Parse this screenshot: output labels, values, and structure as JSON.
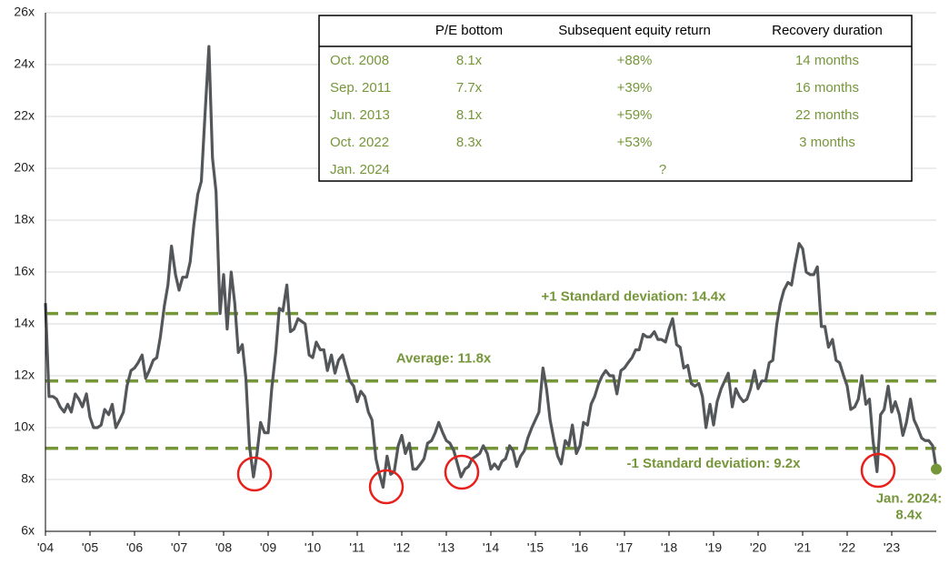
{
  "chart_data": {
    "type": "line",
    "xlim": [
      2004,
      2024
    ],
    "xticks": [
      {
        "value": 2004,
        "label": "'04"
      },
      {
        "value": 2005,
        "label": "'05"
      },
      {
        "value": 2006,
        "label": "'06"
      },
      {
        "value": 2007,
        "label": "'07"
      },
      {
        "value": 2008,
        "label": "'08"
      },
      {
        "value": 2009,
        "label": "'09"
      },
      {
        "value": 2010,
        "label": "'10"
      },
      {
        "value": 2011,
        "label": "'11"
      },
      {
        "value": 2012,
        "label": "'12"
      },
      {
        "value": 2013,
        "label": "'13"
      },
      {
        "value": 2014,
        "label": "'14"
      },
      {
        "value": 2015,
        "label": "'15"
      },
      {
        "value": 2016,
        "label": "'16"
      },
      {
        "value": 2017,
        "label": "'17"
      },
      {
        "value": 2018,
        "label": "'18"
      },
      {
        "value": 2019,
        "label": "'19"
      },
      {
        "value": 2020,
        "label": "'20"
      },
      {
        "value": 2021,
        "label": "'21"
      },
      {
        "value": 2022,
        "label": "'22"
      },
      {
        "value": 2023,
        "label": "'23"
      }
    ],
    "ylim": [
      6,
      26
    ],
    "yticks": [
      {
        "value": 6,
        "label": "6x"
      },
      {
        "value": 8,
        "label": "8x"
      },
      {
        "value": 10,
        "label": "10x"
      },
      {
        "value": 12,
        "label": "12x"
      },
      {
        "value": 14,
        "label": "14x"
      },
      {
        "value": 16,
        "label": "16x"
      },
      {
        "value": 18,
        "label": "18x"
      },
      {
        "value": 20,
        "label": "20x"
      },
      {
        "value": 22,
        "label": "22x"
      },
      {
        "value": 24,
        "label": "24x"
      },
      {
        "value": 26,
        "label": "26x"
      }
    ],
    "grid": true,
    "x": [
      2004.0,
      2004.08,
      2004.17,
      2004.25,
      2004.33,
      2004.42,
      2004.5,
      2004.58,
      2004.67,
      2004.75,
      2004.83,
      2004.92,
      2005.0,
      2005.08,
      2005.17,
      2005.25,
      2005.33,
      2005.42,
      2005.5,
      2005.58,
      2005.67,
      2005.75,
      2005.83,
      2005.92,
      2006.0,
      2006.08,
      2006.17,
      2006.25,
      2006.33,
      2006.42,
      2006.5,
      2006.58,
      2006.67,
      2006.75,
      2006.83,
      2006.92,
      2007.0,
      2007.08,
      2007.17,
      2007.25,
      2007.33,
      2007.42,
      2007.5,
      2007.58,
      2007.67,
      2007.75,
      2007.83,
      2007.92,
      2008.0,
      2008.08,
      2008.17,
      2008.25,
      2008.33,
      2008.42,
      2008.5,
      2008.58,
      2008.67,
      2008.75,
      2008.83,
      2008.92,
      2009.0,
      2009.08,
      2009.17,
      2009.25,
      2009.33,
      2009.42,
      2009.5,
      2009.58,
      2009.67,
      2009.75,
      2009.83,
      2009.92,
      2010.0,
      2010.08,
      2010.17,
      2010.25,
      2010.33,
      2010.42,
      2010.5,
      2010.58,
      2010.67,
      2010.75,
      2010.83,
      2010.92,
      2011.0,
      2011.08,
      2011.17,
      2011.25,
      2011.33,
      2011.42,
      2011.5,
      2011.58,
      2011.67,
      2011.75,
      2011.83,
      2011.92,
      2012.0,
      2012.08,
      2012.17,
      2012.25,
      2012.33,
      2012.42,
      2012.5,
      2012.58,
      2012.67,
      2012.75,
      2012.83,
      2012.92,
      2013.0,
      2013.08,
      2013.17,
      2013.25,
      2013.33,
      2013.42,
      2013.5,
      2013.58,
      2013.67,
      2013.75,
      2013.83,
      2013.92,
      2014.0,
      2014.08,
      2014.17,
      2014.25,
      2014.33,
      2014.42,
      2014.5,
      2014.58,
      2014.67,
      2014.75,
      2014.83,
      2014.92,
      2015.0,
      2015.08,
      2015.17,
      2015.25,
      2015.33,
      2015.42,
      2015.5,
      2015.58,
      2015.67,
      2015.75,
      2015.83,
      2015.92,
      2016.0,
      2016.08,
      2016.17,
      2016.25,
      2016.33,
      2016.42,
      2016.5,
      2016.58,
      2016.67,
      2016.75,
      2016.83,
      2016.92,
      2017.0,
      2017.08,
      2017.17,
      2017.25,
      2017.33,
      2017.42,
      2017.5,
      2017.58,
      2017.67,
      2017.75,
      2017.83,
      2017.92,
      2018.0,
      2018.08,
      2018.17,
      2018.25,
      2018.33,
      2018.42,
      2018.5,
      2018.58,
      2018.67,
      2018.75,
      2018.83,
      2018.92,
      2019.0,
      2019.08,
      2019.17,
      2019.25,
      2019.33,
      2019.42,
      2019.5,
      2019.58,
      2019.67,
      2019.75,
      2019.83,
      2019.92,
      2020.0,
      2020.08,
      2020.17,
      2020.25,
      2020.33,
      2020.42,
      2020.5,
      2020.58,
      2020.67,
      2020.75,
      2020.83,
      2020.92,
      2021.0,
      2021.08,
      2021.17,
      2021.25,
      2021.33,
      2021.42,
      2021.5,
      2021.58,
      2021.67,
      2021.75,
      2021.83,
      2021.92,
      2022.0,
      2022.08,
      2022.17,
      2022.25,
      2022.33,
      2022.42,
      2022.5,
      2022.58,
      2022.67,
      2022.75,
      2022.83,
      2022.92,
      2023.0,
      2023.08,
      2023.17,
      2023.25,
      2023.33,
      2023.42,
      2023.5,
      2023.58,
      2023.67,
      2023.75,
      2023.83,
      2023.92,
      2024.0
    ],
    "series": [
      {
        "color": "#53575a",
        "values": [
          14.8,
          11.2,
          11.2,
          11.1,
          10.8,
          10.6,
          10.9,
          10.6,
          11.3,
          11.1,
          10.8,
          11.3,
          10.4,
          10.0,
          10.0,
          10.1,
          10.7,
          10.5,
          10.9,
          10.0,
          10.3,
          10.6,
          11.6,
          12.2,
          12.3,
          12.5,
          12.8,
          11.9,
          12.2,
          12.6,
          12.7,
          13.5,
          14.7,
          15.5,
          17.0,
          15.9,
          15.3,
          15.8,
          15.8,
          16.4,
          17.8,
          19.0,
          19.5,
          22.0,
          24.7,
          20.4,
          19.1,
          14.4,
          15.9,
          13.8,
          16.0,
          14.8,
          12.9,
          13.2,
          11.9,
          9.3,
          8.1,
          9.0,
          10.2,
          9.8,
          9.8,
          11.5,
          12.9,
          14.6,
          14.5,
          15.5,
          13.7,
          13.8,
          14.2,
          14.1,
          14.0,
          12.8,
          12.7,
          13.3,
          13.0,
          13.0,
          12.2,
          12.8,
          12.1,
          12.6,
          12.8,
          12.3,
          11.8,
          11.6,
          11.0,
          11.4,
          11.2,
          10.6,
          10.3,
          8.8,
          8.2,
          7.7,
          8.9,
          8.2,
          8.3,
          9.3,
          9.7,
          9.0,
          9.4,
          8.4,
          8.4,
          8.6,
          8.8,
          9.4,
          9.5,
          9.8,
          10.2,
          9.8,
          9.5,
          9.4,
          9.1,
          8.6,
          8.1,
          8.4,
          8.5,
          8.8,
          8.9,
          9.0,
          9.3,
          9.0,
          8.4,
          8.6,
          8.4,
          8.7,
          8.8,
          9.3,
          9.1,
          8.5,
          8.9,
          9.1,
          9.6,
          10.0,
          10.3,
          10.6,
          12.3,
          11.5,
          10.3,
          9.5,
          8.9,
          8.6,
          9.5,
          9.3,
          10.1,
          9.0,
          9.3,
          10.2,
          10.1,
          10.9,
          11.2,
          11.7,
          12.0,
          12.2,
          12.0,
          12.0,
          11.3,
          12.2,
          12.3,
          12.5,
          12.7,
          13.0,
          13.0,
          13.6,
          13.5,
          13.5,
          13.7,
          13.4,
          13.4,
          13.3,
          13.8,
          14.2,
          13.2,
          13.1,
          12.3,
          12.4,
          11.7,
          11.6,
          11.7,
          11.2,
          10.0,
          10.9,
          10.1,
          11.0,
          11.5,
          11.8,
          12.1,
          10.8,
          11.5,
          11.2,
          11.0,
          11.1,
          11.5,
          12.2,
          11.5,
          11.8,
          11.8,
          12.5,
          12.6,
          14.0,
          14.8,
          15.3,
          15.6,
          15.5,
          16.3,
          17.1,
          16.9,
          16.0,
          15.9,
          15.9,
          16.2,
          13.9,
          13.9,
          13.1,
          13.4,
          12.6,
          12.5,
          12.0,
          11.6,
          10.7,
          10.8,
          11.1,
          12.0,
          10.9,
          11.1,
          9.5,
          8.3,
          10.5,
          10.7,
          11.6,
          10.6,
          11.0,
          10.5,
          9.7,
          10.2,
          11.1,
          10.3,
          10.0,
          9.6,
          9.5,
          9.5,
          9.3,
          8.4
        ]
      }
    ],
    "reference_lines": [
      {
        "label": "+1 Standard deviation: 14.4x",
        "value": 14.4
      },
      {
        "label": "Average: 11.8x",
        "value": 11.8
      },
      {
        "label": "-1 Standard deviation: 9.2x",
        "value": 9.2
      }
    ],
    "reference_color": "#76963a",
    "end_point": {
      "x": 2024,
      "value": 8.4,
      "label": "Jan. 2024:",
      "value_label": "8.4x",
      "color": "#76963a"
    },
    "highlight_color": "#e8201c"
  },
  "table": {
    "header": [
      "P/E bottom",
      "Subsequent equity return",
      "Recovery duration"
    ],
    "rows": [
      [
        "Oct. 2008",
        "8.1x",
        "+88%",
        "14 months"
      ],
      [
        "Sep. 2011",
        "7.7x",
        "+39%",
        "16 months"
      ],
      [
        "Jun. 2013",
        "8.1x",
        "+59%",
        "22 months"
      ],
      [
        "Oct. 2022",
        "8.3x",
        "+53%",
        "3 months"
      ],
      [
        "Jan. 2024",
        null,
        "?",
        null
      ]
    ]
  }
}
